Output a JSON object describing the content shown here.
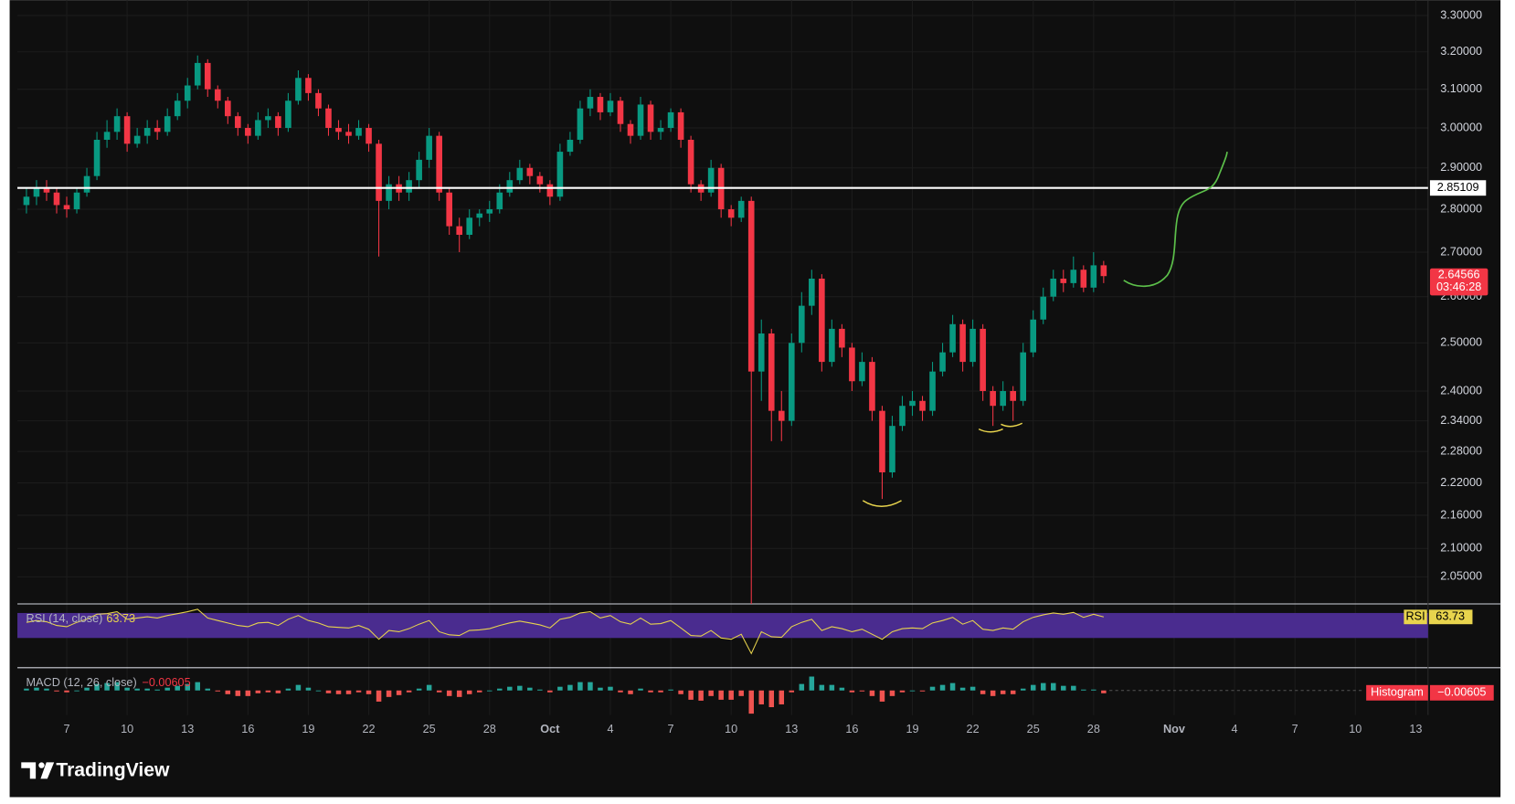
{
  "chart_data": {
    "type": "candlestick",
    "x": [
      5,
      5.5,
      6,
      6.5,
      7,
      7.5,
      8,
      8.5,
      9,
      9.5,
      10,
      10.5,
      11,
      11.5,
      12,
      12.5,
      13,
      13.5,
      14,
      14.5,
      15,
      15.5,
      16,
      16.5,
      17,
      17.5,
      18,
      18.5,
      19,
      19.5,
      20,
      20.5,
      21,
      21.5,
      22,
      22.5,
      23,
      23.5,
      24,
      24.5,
      25,
      25.5,
      26,
      26.5,
      27,
      27.5,
      28,
      28.5,
      29,
      29.5,
      30,
      30.5,
      31,
      31.5,
      32,
      32.5,
      33,
      33.5,
      34,
      34.5,
      35,
      35.5,
      36,
      36.5,
      37,
      37.5,
      38,
      38.5,
      39,
      39.5,
      40,
      40.5,
      41,
      41.5,
      42,
      42.5,
      43,
      43.5,
      44,
      44.5,
      45,
      45.5,
      46,
      46.5,
      47,
      47.5,
      48,
      48.5,
      49,
      49.5,
      50,
      50.5,
      51,
      51.5,
      52,
      52.5,
      53,
      53.5,
      54,
      54.5,
      55,
      55.5,
      56,
      56.5,
      57,
      57.5,
      58,
      58.5
    ],
    "open": [
      2.81,
      2.83,
      2.85,
      2.84,
      2.81,
      2.8,
      2.84,
      2.88,
      2.97,
      2.99,
      3.03,
      2.96,
      2.98,
      3.0,
      2.99,
      3.03,
      3.07,
      3.11,
      3.17,
      3.1,
      3.07,
      3.03,
      3.0,
      2.98,
      3.02,
      3.03,
      3.0,
      3.07,
      3.13,
      3.09,
      3.05,
      3.0,
      2.99,
      2.98,
      3.0,
      2.96,
      2.82,
      2.86,
      2.84,
      2.87,
      2.92,
      2.98,
      2.84,
      2.76,
      2.74,
      2.78,
      2.79,
      2.8,
      2.84,
      2.87,
      2.9,
      2.88,
      2.86,
      2.83,
      2.94,
      2.97,
      3.05,
      3.08,
      3.04,
      3.07,
      3.01,
      2.98,
      3.06,
      2.99,
      3.0,
      3.04,
      2.97,
      2.86,
      2.84,
      2.9,
      2.8,
      2.78,
      2.82,
      2.44,
      2.52,
      2.36,
      2.34,
      2.5,
      2.58,
      2.64,
      2.46,
      2.53,
      2.49,
      2.42,
      2.46,
      2.36,
      2.24,
      2.33,
      2.37,
      2.38,
      2.36,
      2.44,
      2.48,
      2.54,
      2.46,
      2.53,
      2.4,
      2.37,
      2.4,
      2.38,
      2.48,
      2.55,
      2.6,
      2.64,
      2.63,
      2.66,
      2.62,
      2.67
    ],
    "high": [
      2.85,
      2.87,
      2.87,
      2.85,
      2.83,
      2.85,
      2.9,
      2.99,
      3.02,
      3.05,
      3.04,
      3.0,
      3.02,
      3.02,
      3.05,
      3.09,
      3.13,
      3.19,
      3.18,
      3.11,
      3.08,
      3.04,
      3.01,
      3.04,
      3.05,
      3.04,
      3.09,
      3.15,
      3.14,
      3.1,
      3.06,
      3.02,
      3.01,
      3.02,
      3.01,
      2.97,
      2.88,
      2.88,
      2.89,
      2.94,
      3.0,
      2.99,
      2.85,
      2.78,
      2.8,
      2.8,
      2.82,
      2.86,
      2.89,
      2.92,
      2.91,
      2.89,
      2.87,
      2.96,
      2.99,
      3.07,
      3.1,
      3.09,
      3.09,
      3.08,
      3.02,
      3.08,
      3.07,
      3.02,
      3.05,
      3.05,
      2.98,
      2.87,
      2.92,
      2.91,
      2.81,
      2.83,
      2.83,
      2.55,
      2.53,
      2.4,
      2.52,
      2.61,
      2.66,
      2.65,
      2.55,
      2.54,
      2.5,
      2.48,
      2.47,
      2.37,
      2.35,
      2.39,
      2.4,
      2.39,
      2.46,
      2.5,
      2.56,
      2.55,
      2.55,
      2.54,
      2.41,
      2.42,
      2.41,
      2.5,
      2.57,
      2.62,
      2.66,
      2.66,
      2.69,
      2.67,
      2.7,
      2.68
    ],
    "low": [
      2.79,
      2.81,
      2.82,
      2.79,
      2.78,
      2.79,
      2.83,
      2.87,
      2.95,
      2.97,
      2.94,
      2.95,
      2.96,
      2.97,
      2.98,
      3.02,
      3.05,
      3.1,
      3.08,
      3.05,
      3.01,
      2.98,
      2.96,
      2.97,
      3.0,
      2.98,
      2.99,
      3.06,
      3.07,
      3.03,
      2.98,
      2.97,
      2.96,
      2.97,
      2.94,
      2.69,
      2.8,
      2.82,
      2.82,
      2.85,
      2.9,
      2.82,
      2.74,
      2.7,
      2.73,
      2.76,
      2.77,
      2.79,
      2.83,
      2.86,
      2.86,
      2.84,
      2.81,
      2.82,
      2.93,
      2.96,
      3.03,
      3.02,
      3.03,
      2.99,
      2.96,
      2.97,
      2.97,
      2.97,
      2.99,
      2.95,
      2.84,
      2.82,
      2.83,
      2.78,
      2.76,
      2.77,
      2.0,
      2.38,
      2.3,
      2.3,
      2.33,
      2.48,
      2.56,
      2.44,
      2.45,
      2.47,
      2.4,
      2.41,
      2.34,
      2.19,
      2.23,
      2.32,
      2.35,
      2.34,
      2.35,
      2.43,
      2.47,
      2.44,
      2.45,
      2.38,
      2.33,
      2.36,
      2.34,
      2.37,
      2.47,
      2.54,
      2.59,
      2.61,
      2.62,
      2.61,
      2.61,
      2.63
    ],
    "close": [
      2.83,
      2.85,
      2.84,
      2.81,
      2.8,
      2.84,
      2.88,
      2.97,
      2.99,
      3.03,
      2.96,
      2.98,
      3.0,
      2.99,
      3.03,
      3.07,
      3.11,
      3.17,
      3.1,
      3.07,
      3.03,
      3.0,
      2.98,
      3.02,
      3.03,
      3.0,
      3.07,
      3.13,
      3.09,
      3.05,
      3.0,
      2.99,
      2.98,
      3.0,
      2.96,
      2.82,
      2.86,
      2.84,
      2.87,
      2.92,
      2.98,
      2.84,
      2.76,
      2.74,
      2.78,
      2.79,
      2.8,
      2.84,
      2.87,
      2.9,
      2.88,
      2.86,
      2.83,
      2.94,
      2.97,
      3.05,
      3.08,
      3.04,
      3.07,
      3.01,
      2.98,
      3.06,
      2.99,
      3.0,
      3.04,
      2.97,
      2.86,
      2.84,
      2.9,
      2.8,
      2.78,
      2.82,
      2.44,
      2.52,
      2.36,
      2.34,
      2.5,
      2.58,
      2.64,
      2.46,
      2.53,
      2.49,
      2.42,
      2.46,
      2.36,
      2.24,
      2.33,
      2.37,
      2.38,
      2.36,
      2.44,
      2.48,
      2.54,
      2.46,
      2.53,
      2.4,
      2.37,
      2.4,
      2.38,
      2.48,
      2.55,
      2.6,
      2.64,
      2.63,
      2.66,
      2.62,
      2.67,
      2.64566
    ],
    "up_color": "#089981",
    "down_color": "#f23645",
    "xlim": [
      4.55,
      74.61
    ],
    "xticks": [
      7,
      10,
      13,
      16,
      19,
      22,
      25,
      28,
      {
        "value": 31,
        "label": "Oct"
      },
      {
        "value": 34,
        "label": "4"
      },
      {
        "value": 37,
        "label": "7"
      },
      {
        "value": 40,
        "label": "10"
      },
      {
        "value": 43,
        "label": "13"
      },
      {
        "value": 46,
        "label": "16"
      },
      {
        "value": 49,
        "label": "19"
      },
      {
        "value": 52,
        "label": "22"
      },
      {
        "value": 55,
        "label": "25"
      },
      {
        "value": 58,
        "label": "28"
      },
      {
        "value": 62,
        "label": "Nov"
      },
      {
        "value": 65,
        "label": "4"
      },
      {
        "value": 68,
        "label": "7"
      },
      {
        "value": 71,
        "label": "10"
      },
      {
        "value": 74,
        "label": "13"
      }
    ],
    "ylim": [
      2.0035,
      3.3435
    ],
    "log_scale": true,
    "grid": true,
    "yticks": [
      {
        "value": 2.05,
        "label": "2.05000"
      },
      {
        "value": 2.1,
        "label": "2.10000"
      },
      {
        "value": 2.16,
        "label": "2.16000"
      },
      {
        "value": 2.22,
        "label": "2.22000"
      },
      {
        "value": 2.28,
        "label": "2.28000"
      },
      {
        "value": 2.34,
        "label": "2.34000"
      },
      {
        "value": 2.4,
        "label": "2.40000"
      },
      {
        "value": 2.5,
        "label": "2.50000"
      },
      {
        "value": 2.6,
        "label": "2.60000"
      },
      {
        "value": 2.7,
        "label": "2.70000"
      },
      {
        "value": 2.8,
        "label": "2.80000"
      },
      {
        "value": 2.9,
        "label": "2.90000"
      },
      {
        "value": 3.0,
        "label": "3.00000"
      },
      {
        "value": 3.1,
        "label": "3.10000"
      },
      {
        "value": 3.2,
        "label": "3.20000"
      },
      {
        "value": 3.3,
        "label": "3.30000"
      }
    ],
    "price_line": 2.85109,
    "countdown": "03:46:28",
    "rsi": {
      "label": "RSI (14, close)",
      "tag": "RSI",
      "color": "#e8d44d",
      "band": [
        30,
        70
      ],
      "ylim": [
        -16,
        83
      ],
      "values": [
        55,
        58,
        56,
        50,
        48,
        55,
        60,
        68,
        69,
        72,
        60,
        62,
        64,
        62,
        66,
        69,
        72,
        76,
        62,
        58,
        54,
        50,
        48,
        54,
        55,
        50,
        60,
        66,
        58,
        54,
        48,
        47,
        46,
        50,
        44,
        28,
        42,
        40,
        45,
        52,
        58,
        40,
        35,
        34,
        42,
        43,
        45,
        50,
        54,
        57,
        54,
        51,
        46,
        60,
        63,
        70,
        72,
        62,
        66,
        56,
        52,
        62,
        52,
        53,
        58,
        46,
        34,
        33,
        42,
        30,
        28,
        36,
        5,
        40,
        32,
        31,
        48,
        55,
        60,
        42,
        48,
        45,
        40,
        44,
        36,
        28,
        40,
        45,
        46,
        45,
        54,
        58,
        63,
        52,
        58,
        44,
        42,
        46,
        44,
        56,
        63,
        67,
        70,
        68,
        71,
        63,
        68,
        63.73
      ]
    },
    "macd": {
      "label": "MACD (12, 26, close)",
      "value_label": "−0.00605",
      "histogram_label": "Histogram",
      "ylim": [
        -0.055,
        0.045
      ],
      "histogram": [
        0.004,
        0.006,
        0.004,
        -0.002,
        -0.004,
        0,
        0.006,
        0.014,
        0.016,
        0.018,
        0.006,
        0.004,
        0.004,
        0.002,
        0.006,
        0.01,
        0.014,
        0.018,
        0.004,
        -0.002,
        -0.008,
        -0.012,
        -0.012,
        -0.006,
        -0.004,
        -0.006,
        0.004,
        0.012,
        0.006,
        0,
        -0.006,
        -0.008,
        -0.008,
        -0.004,
        -0.008,
        -0.024,
        -0.014,
        -0.01,
        -0.004,
        0.004,
        0.012,
        -0.004,
        -0.012,
        -0.014,
        -0.008,
        -0.004,
        0,
        0.004,
        0.008,
        0.01,
        0.006,
        0.002,
        -0.004,
        0.008,
        0.012,
        0.018,
        0.018,
        0.006,
        0.008,
        -0.004,
        -0.008,
        0.004,
        -0.004,
        -0.004,
        0.002,
        -0.008,
        -0.02,
        -0.022,
        -0.012,
        -0.02,
        -0.02,
        -0.012,
        -0.05,
        -0.03,
        -0.036,
        -0.03,
        -0.004,
        0.014,
        0.03,
        0.012,
        0.012,
        0.006,
        -0.004,
        -0.002,
        -0.012,
        -0.024,
        -0.012,
        -0.004,
        0,
        -0.002,
        0.008,
        0.012,
        0.016,
        0.006,
        0.008,
        -0.008,
        -0.012,
        -0.008,
        -0.008,
        0.004,
        0.012,
        0.016,
        0.016,
        0.01,
        0.01,
        0.002,
        0.002,
        -0.00605
      ]
    }
  },
  "logo": "TradingView"
}
